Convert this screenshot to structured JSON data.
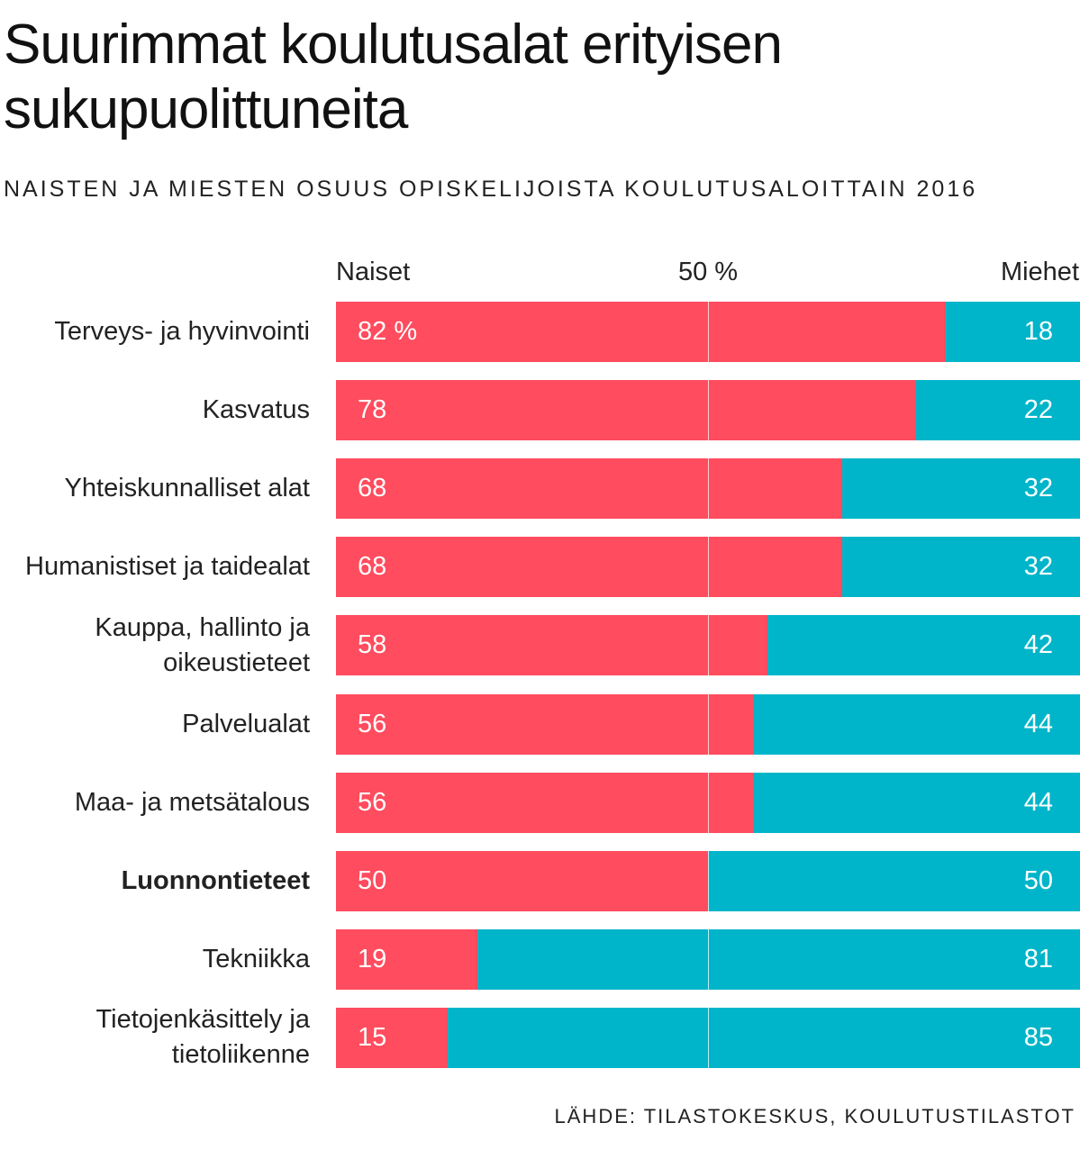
{
  "chart_data": {
    "type": "bar",
    "stacked": true,
    "orientation": "horizontal",
    "title": "Suurimmat koulutusalat erityisen sukupuolittuneita",
    "subtitle": "NAISTEN JA MIESTEN OSUUS OPISKELIJOISTA KOULUTUSALOITTAIN 2016",
    "axis_labels": {
      "left": "Naiset",
      "center": "50 %",
      "right": "Miehet"
    },
    "categories": [
      "Terveys- ja hyvinvointi",
      "Kasvatus",
      "Yhteiskunnalliset alat",
      "Humanistiset ja taidealat",
      "Kauppa, hallinto ja oikeustieteet",
      "Palvelualat",
      "Maa- ja metsätalous",
      "Luonnontieteet",
      "Tekniikka",
      "Tietojenkäsittely ja tietoliikenne"
    ],
    "highlighted_category": "Luonnontieteet",
    "series": [
      {
        "name": "Naiset",
        "color": "#ff4c5e",
        "values": [
          82,
          78,
          68,
          68,
          58,
          56,
          56,
          50,
          19,
          15
        ],
        "value_labels": [
          "82 %",
          "78",
          "68",
          "68",
          "58",
          "56",
          "56",
          "50",
          "19",
          "15"
        ]
      },
      {
        "name": "Miehet",
        "color": "#00b5c9",
        "values": [
          18,
          22,
          32,
          32,
          42,
          44,
          44,
          50,
          81,
          85
        ],
        "value_labels": [
          "18",
          "22",
          "32",
          "32",
          "42",
          "44",
          "44",
          "50",
          "81",
          "85"
        ]
      }
    ],
    "xlim": [
      0,
      100
    ],
    "reference_line": 50,
    "source": "LÄHDE: TILASTOKESKUS, KOULUTUSTILASTOT"
  }
}
